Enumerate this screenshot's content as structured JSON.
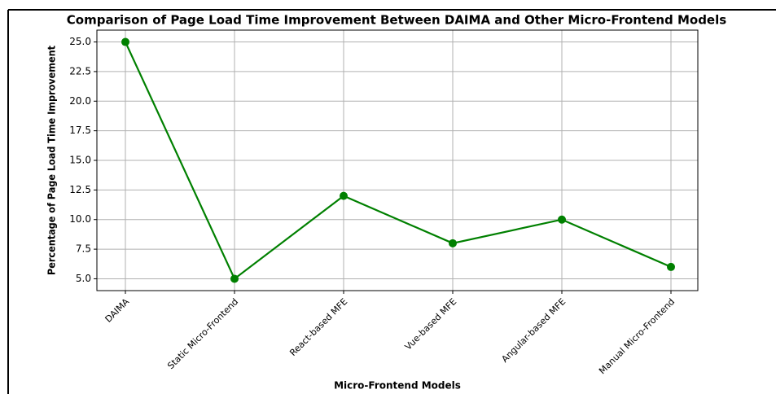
{
  "chart_data": {
    "type": "line",
    "title": "Comparison of Page Load Time Improvement Between DAIMA and Other Micro-Frontend Models",
    "xlabel": "Micro-Frontend Models",
    "ylabel": "Percentage of Page Load Time Improvement",
    "categories": [
      "DAIMA",
      "Static Micro-Frontend",
      "React-based MFE",
      "Vue-based MFE",
      "Angular-based MFE",
      "Manual Micro-Frontend"
    ],
    "series": [
      {
        "name": "Page Load Time Improvement",
        "color": "#008000",
        "values": [
          25,
          5,
          12,
          8,
          10,
          6
        ]
      }
    ],
    "ylim": [
      4.0,
      26.0
    ],
    "yticks": [
      {
        "value": 5,
        "label": "5.0"
      },
      7.5,
      {
        "value": 10,
        "label": "10.0"
      },
      12.5,
      {
        "value": 15,
        "label": "15.0"
      },
      17.5,
      {
        "value": 20,
        "label": "20.0"
      },
      22.5,
      {
        "value": 25,
        "label": "25.0"
      }
    ],
    "grid": true
  }
}
